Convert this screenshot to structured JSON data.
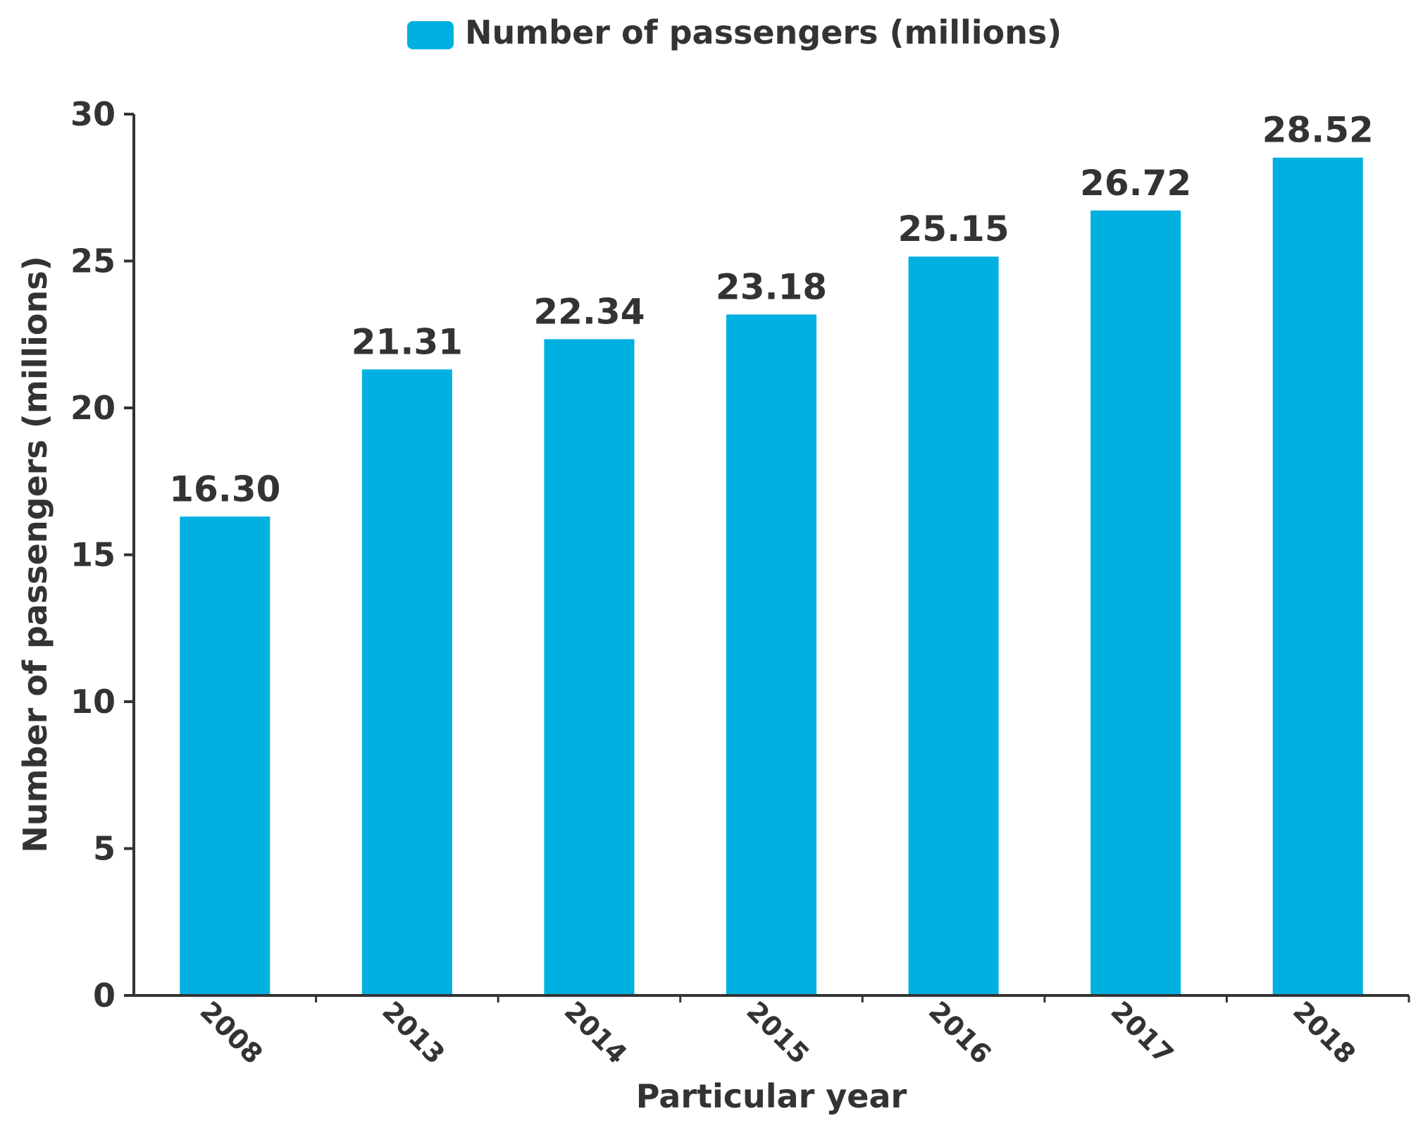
{
  "chart_data": {
    "type": "bar",
    "categories": [
      "2008",
      "2013",
      "2014",
      "2015",
      "2016",
      "2017",
      "2018"
    ],
    "series": [
      {
        "name": "Number of passengers (millions)",
        "values": [
          16.3,
          21.31,
          22.34,
          23.18,
          25.15,
          26.72,
          28.52
        ],
        "data_labels": [
          "16.30",
          "21.31",
          "22.34",
          "23.18",
          "25.15",
          "26.72",
          "28.52"
        ]
      }
    ],
    "title": "",
    "xlabel": "Particular year",
    "ylabel": "Number of passengers (millions)",
    "ylim": [
      0,
      30
    ],
    "yticks": [
      0,
      5,
      10,
      15,
      20,
      25,
      30
    ],
    "ytick_labels": [
      "0",
      "5",
      "10",
      "15",
      "20",
      "25",
      "30"
    ],
    "grid": false,
    "legend": {
      "position": "top-center",
      "entries": [
        "Number of passengers (millions)"
      ]
    },
    "colors": {
      "bar": "#00b0e0",
      "text": "#333333",
      "axis": "#333333"
    }
  }
}
